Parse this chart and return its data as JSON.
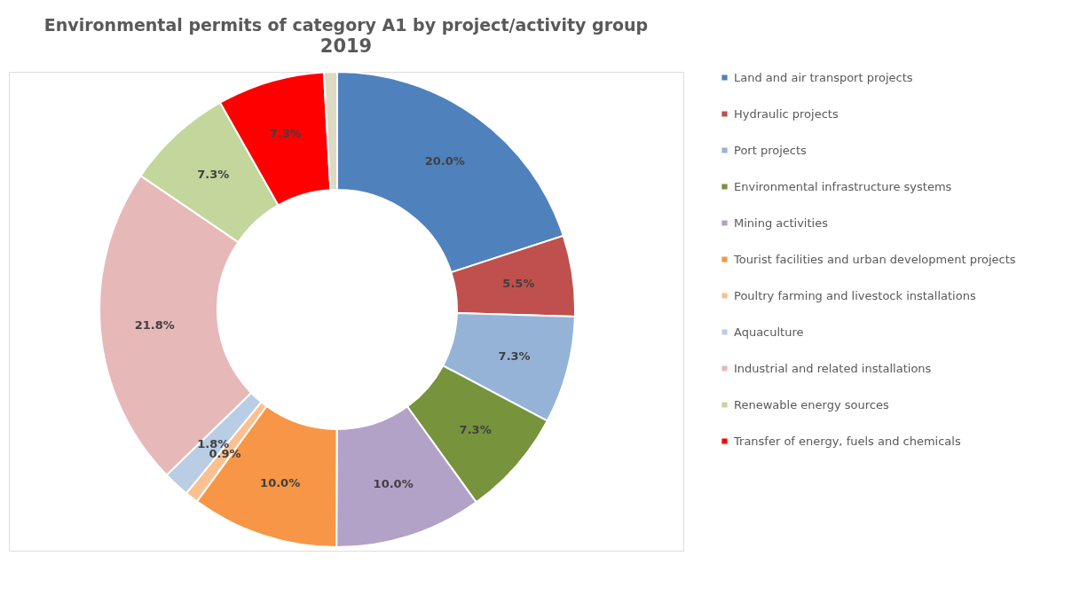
{
  "chart_data": {
    "type": "donut",
    "title": "Environmental permits of category A1 by project/activity group",
    "subtitle": "2019",
    "categories": [
      "Land and air transport projects",
      "Hydraulic projects",
      "Port projects",
      "Environmental infrastructure systems",
      "Mining activities",
      "Tourist facilities and urban development projects",
      "Poultry farming and livestock installations",
      "Aquaculture",
      "Industrial and related installations",
      "Renewable energy sources",
      "Transfer of energy, fuels and chemicals",
      null
    ],
    "values": [
      20.0,
      5.5,
      7.3,
      7.3,
      10.0,
      10.0,
      0.9,
      1.8,
      21.8,
      7.3,
      7.3,
      0.9
    ],
    "value_labels": [
      "20.0%",
      "5.5%",
      "7.3%",
      "7.3%",
      "10.0%",
      "10.0%",
      "0.9%",
      "1.8%",
      "21.8%",
      "7.3%",
      "7.3%",
      null
    ],
    "colors": [
      "#4f81bd",
      "#c0504d",
      "#95b3d7",
      "#77933c",
      "#b3a2c7",
      "#f79646",
      "#fac090",
      "#b9cde5",
      "#e6b9b8",
      "#c3d69b",
      "#ff0000",
      "#ddd9c3"
    ],
    "legend": "right"
  }
}
